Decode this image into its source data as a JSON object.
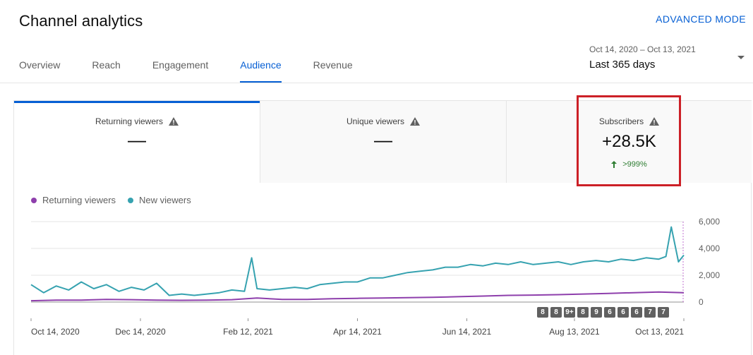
{
  "header": {
    "title": "Channel analytics",
    "advanced_mode": "ADVANCED MODE"
  },
  "tabs": [
    {
      "label": "Overview"
    },
    {
      "label": "Reach"
    },
    {
      "label": "Engagement"
    },
    {
      "label": "Audience",
      "active": true
    },
    {
      "label": "Revenue"
    }
  ],
  "date_picker": {
    "range": "Oct 14, 2020 – Oct 13, 2021",
    "label": "Last 365 days"
  },
  "metrics": [
    {
      "label": "Returning viewers",
      "value": "—"
    },
    {
      "label": "Unique viewers",
      "value": "—"
    },
    {
      "label": "Subscribers",
      "value": "+28.5K",
      "delta": ">999%"
    }
  ],
  "colors": {
    "accent": "#065fd4",
    "returning": "#8e3fac",
    "new": "#36a2b0",
    "highlight": "#cc2027",
    "positive": "#2e7d32"
  },
  "icons": {
    "warning": "warning-icon",
    "up": "arrow-up-icon"
  },
  "chart_data": {
    "type": "line",
    "legend": "top-left",
    "x_ticks": [
      "Oct 14, 2020",
      "Dec 14, 2020",
      "Feb 12, 2021",
      "Apr 14, 2021",
      "Jun 14, 2021",
      "Aug 13, 2021",
      "Oct 13, 2021"
    ],
    "y_ticks": [
      "6,000",
      "4,000",
      "2,000",
      "0"
    ],
    "ylim": [
      0,
      6000
    ],
    "grid": true,
    "series": [
      {
        "name": "Returning viewers",
        "x": [
          "Oct 14, 2020",
          "Oct 28, 2020",
          "Nov 11, 2020",
          "Nov 25, 2020",
          "Dec 9, 2020",
          "Dec 23, 2020",
          "Jan 6, 2021",
          "Jan 20, 2021",
          "Feb 3, 2021",
          "Feb 17, 2021",
          "Mar 3, 2021",
          "Mar 17, 2021",
          "Mar 31, 2021",
          "Apr 14, 2021",
          "Apr 28, 2021",
          "May 12, 2021",
          "May 26, 2021",
          "Jun 9, 2021",
          "Jun 23, 2021",
          "Jul 7, 2021",
          "Jul 21, 2021",
          "Aug 4, 2021",
          "Aug 18, 2021",
          "Sep 1, 2021",
          "Sep 15, 2021",
          "Sep 29, 2021",
          "Oct 13, 2021"
        ],
        "values": [
          100,
          150,
          150,
          200,
          180,
          150,
          130,
          150,
          180,
          300,
          200,
          200,
          250,
          280,
          300,
          330,
          350,
          400,
          450,
          500,
          520,
          550,
          600,
          650,
          700,
          750,
          700
        ]
      },
      {
        "name": "New viewers",
        "x": [
          "Oct 14, 2020",
          "Oct 21, 2020",
          "Oct 28, 2020",
          "Nov 4, 2020",
          "Nov 11, 2020",
          "Nov 18, 2020",
          "Nov 25, 2020",
          "Dec 2, 2020",
          "Dec 9, 2020",
          "Dec 16, 2020",
          "Dec 23, 2020",
          "Dec 30, 2020",
          "Jan 6, 2021",
          "Jan 13, 2021",
          "Jan 20, 2021",
          "Jan 27, 2021",
          "Feb 3, 2021",
          "Feb 10, 2021",
          "Feb 14, 2021",
          "Feb 17, 2021",
          "Feb 24, 2021",
          "Mar 3, 2021",
          "Mar 10, 2021",
          "Mar 17, 2021",
          "Mar 24, 2021",
          "Mar 31, 2021",
          "Apr 7, 2021",
          "Apr 14, 2021",
          "Apr 21, 2021",
          "Apr 28, 2021",
          "May 5, 2021",
          "May 12, 2021",
          "May 19, 2021",
          "May 26, 2021",
          "Jun 2, 2021",
          "Jun 9, 2021",
          "Jun 16, 2021",
          "Jun 23, 2021",
          "Jun 30, 2021",
          "Jul 7, 2021",
          "Jul 14, 2021",
          "Jul 21, 2021",
          "Jul 28, 2021",
          "Aug 4, 2021",
          "Aug 11, 2021",
          "Aug 18, 2021",
          "Aug 25, 2021",
          "Sep 1, 2021",
          "Sep 8, 2021",
          "Sep 15, 2021",
          "Sep 22, 2021",
          "Sep 29, 2021",
          "Oct 3, 2021",
          "Oct 6, 2021",
          "Oct 10, 2021",
          "Oct 13, 2021"
        ],
        "values": [
          1300,
          700,
          1200,
          900,
          1500,
          1000,
          1300,
          800,
          1100,
          900,
          1400,
          500,
          600,
          500,
          600,
          700,
          900,
          800,
          3300,
          1000,
          900,
          1000,
          1100,
          1000,
          1300,
          1400,
          1500,
          1500,
          1800,
          1800,
          2000,
          2200,
          2300,
          2400,
          2600,
          2600,
          2800,
          2700,
          2900,
          2800,
          3000,
          2800,
          2900,
          3000,
          2800,
          3000,
          3100,
          3000,
          3200,
          3100,
          3300,
          3200,
          3400,
          5600,
          3000,
          3500
        ]
      }
    ]
  },
  "timeline_badges": [
    "8",
    "8",
    "9+",
    "8",
    "9",
    "6",
    "6",
    "6",
    "7",
    "7"
  ]
}
